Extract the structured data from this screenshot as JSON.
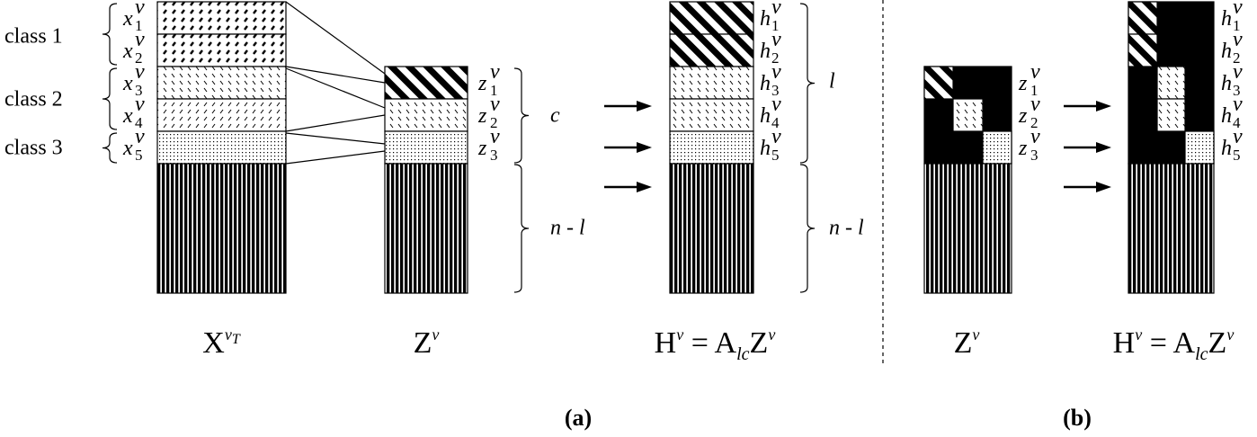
{
  "panel_a": {
    "classes": [
      "class 1",
      "class 2",
      "class 3"
    ],
    "x_labels": [
      {
        "base": "x",
        "sub": "1",
        "sup": "v"
      },
      {
        "base": "x",
        "sub": "2",
        "sup": "v"
      },
      {
        "base": "x",
        "sub": "3",
        "sup": "v"
      },
      {
        "base": "x",
        "sub": "4",
        "sup": "v"
      },
      {
        "base": "x",
        "sub": "5",
        "sup": "v"
      }
    ],
    "z_labels": [
      {
        "base": "z",
        "sub": "1",
        "sup": "v"
      },
      {
        "base": "z",
        "sub": "2",
        "sup": "v"
      },
      {
        "base": "z",
        "sub": "3",
        "sup": "v"
      }
    ],
    "z_brace_labels": [
      "c",
      "n - l"
    ],
    "h_labels": [
      {
        "base": "h",
        "sub": "1",
        "sup": "v"
      },
      {
        "base": "h",
        "sub": "2",
        "sup": "v"
      },
      {
        "base": "h",
        "sub": "3",
        "sup": "v"
      },
      {
        "base": "h",
        "sub": "4",
        "sup": "v"
      },
      {
        "base": "h",
        "sub": "5",
        "sup": "v"
      }
    ],
    "h_brace_labels": [
      "l",
      "n - l"
    ],
    "captions": [
      [
        {
          "text": "X"
        },
        {
          "text": "v",
          "pos": "sup"
        },
        {
          "text": "T",
          "pos": "supsup"
        }
      ],
      [
        {
          "text": "Z"
        },
        {
          "text": "v",
          "pos": "sup"
        }
      ],
      [
        {
          "text": "H"
        },
        {
          "text": "v",
          "pos": "sup"
        },
        {
          "text": " = A"
        },
        {
          "text": "lc",
          "pos": "sub"
        },
        {
          "text": "Z"
        },
        {
          "text": "v",
          "pos": "sup"
        }
      ]
    ],
    "label": "(a)"
  },
  "panel_b": {
    "z_labels": [
      {
        "base": "z",
        "sub": "1",
        "sup": "v"
      },
      {
        "base": "z",
        "sub": "2",
        "sup": "v"
      },
      {
        "base": "z",
        "sub": "3",
        "sup": "v"
      }
    ],
    "h_labels": [
      {
        "base": "h",
        "sub": "1",
        "sup": "v"
      },
      {
        "base": "h",
        "sub": "2",
        "sup": "v"
      },
      {
        "base": "h",
        "sub": "3",
        "sup": "v"
      },
      {
        "base": "h",
        "sub": "4",
        "sup": "v"
      },
      {
        "base": "h",
        "sub": "5",
        "sup": "v"
      }
    ],
    "captions": [
      [
        {
          "text": "Z"
        },
        {
          "text": "v",
          "pos": "sup"
        }
      ],
      [
        {
          "text": "H"
        },
        {
          "text": "v",
          "pos": "sup"
        },
        {
          "text": " = A"
        },
        {
          "text": "lc",
          "pos": "sub"
        },
        {
          "text": "Z"
        },
        {
          "text": "v",
          "pos": "sup"
        }
      ]
    ],
    "label": "(b)"
  }
}
